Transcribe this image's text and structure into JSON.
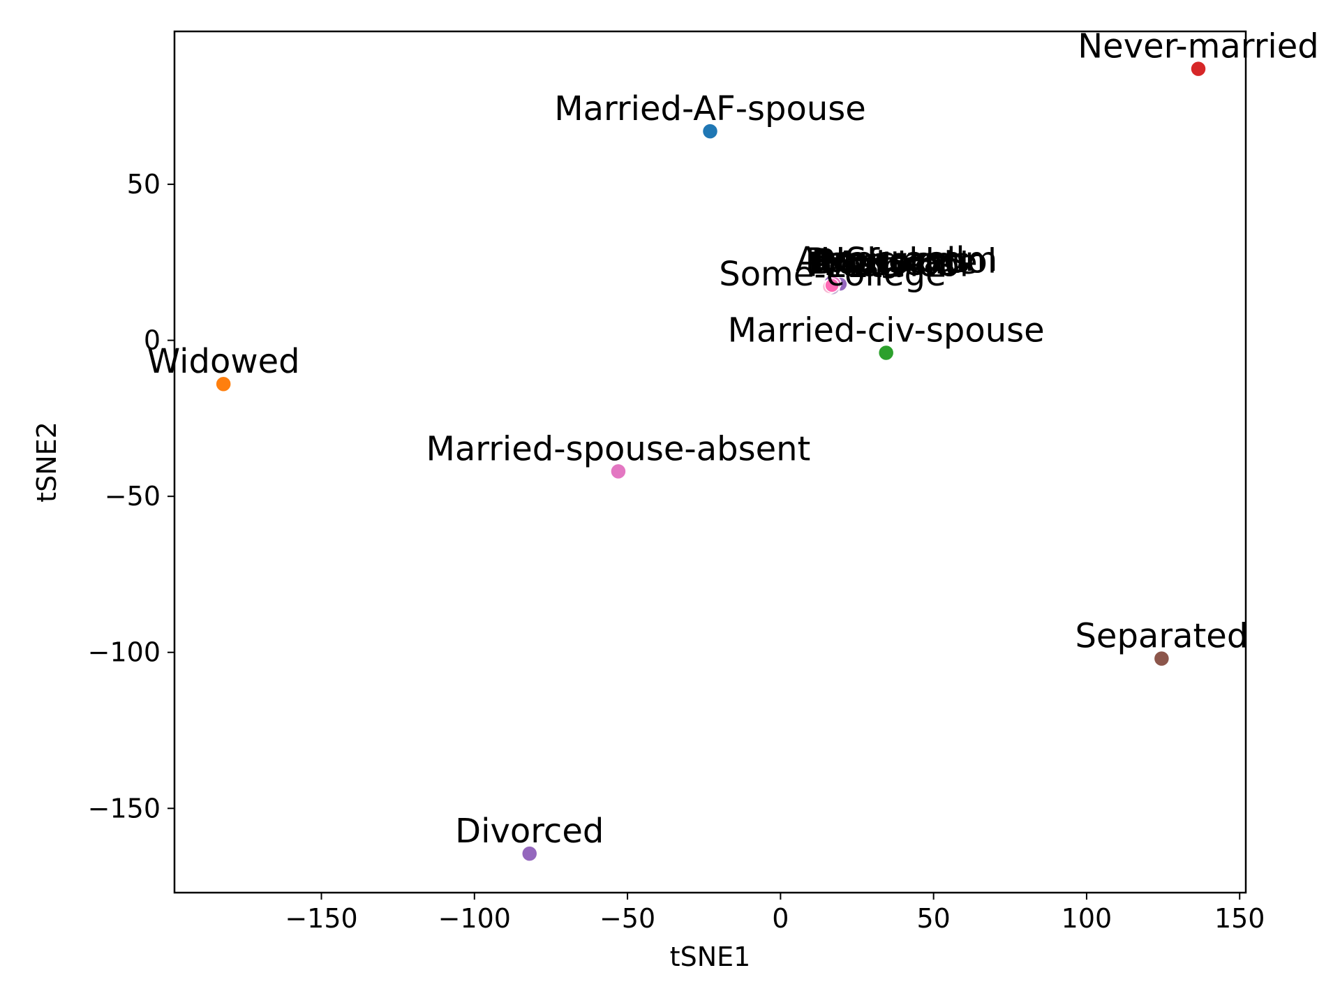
{
  "chart_data": {
    "type": "scatter",
    "title": "",
    "xlabel": "tSNE1",
    "ylabel": "tSNE2",
    "xlim": [
      -198,
      152
    ],
    "ylim": [
      -177,
      99
    ],
    "xticks": [
      -150,
      -100,
      -50,
      0,
      50,
      100,
      150
    ],
    "yticks": [
      -150,
      -100,
      -50,
      0,
      50
    ],
    "xtick_labels": [
      "−150",
      "−100",
      "−50",
      "0",
      "50",
      "100",
      "150"
    ],
    "ytick_labels": [
      "−150",
      "−100",
      "−50",
      "0",
      "50"
    ],
    "grid": false,
    "points": [
      {
        "label": "Married-AF-spouse",
        "x": -23,
        "y": 67,
        "color": "#1f77b4"
      },
      {
        "label": "Never-married",
        "x": 136.5,
        "y": 87,
        "color": "#d62728"
      },
      {
        "label": "Married-civ-spouse",
        "x": 34.5,
        "y": -4,
        "color": "#2ca02c"
      },
      {
        "label": "Widowed",
        "x": -182,
        "y": -14,
        "color": "#ff7f0e"
      },
      {
        "label": "Married-spouse-absent",
        "x": -53,
        "y": -42,
        "color": "#e377c2"
      },
      {
        "label": "Separated",
        "x": 124.5,
        "y": -102,
        "color": "#8c564b"
      },
      {
        "label": "Divorced",
        "x": -82,
        "y": -164.5,
        "color": "#9467bd"
      }
    ],
    "cluster": {
      "label_text": "Some-college",
      "center": {
        "x": 17,
        "y": 18
      },
      "points": [
        {
          "x": 16.5,
          "y": 18.5,
          "color": "#9467bd"
        },
        {
          "x": 18,
          "y": 17.5,
          "color": "#9467bd"
        },
        {
          "x": 19.5,
          "y": 18,
          "color": "#9467bd"
        },
        {
          "x": 17,
          "y": 16.8,
          "color": "#c5b0d5"
        },
        {
          "x": 16,
          "y": 17.2,
          "color": "#f7b6d2"
        },
        {
          "x": 17.5,
          "y": 18.2,
          "color": "#e377c2"
        },
        {
          "x": 16.8,
          "y": 17.6,
          "color": "#ff69b4"
        }
      ],
      "overlap_labels": [
        {
          "text": "Assoc-acdm",
          "dx": -12,
          "dy": 2.5
        },
        {
          "text": "Bachelors",
          "dx": -9,
          "dy": 2.2
        },
        {
          "text": "Doctorate",
          "dx": -7,
          "dy": 1.6
        },
        {
          "text": "HS-grad",
          "dx": -4,
          "dy": 2.3
        },
        {
          "text": "Masters",
          "dx": -3,
          "dy": 1.2
        },
        {
          "text": "Preschool",
          "dx": -8,
          "dy": 0.8
        },
        {
          "text": "Prof-school",
          "dx": -6,
          "dy": 1.9
        },
        {
          "text": "12th",
          "dx": -2,
          "dy": 0.5
        }
      ]
    }
  }
}
